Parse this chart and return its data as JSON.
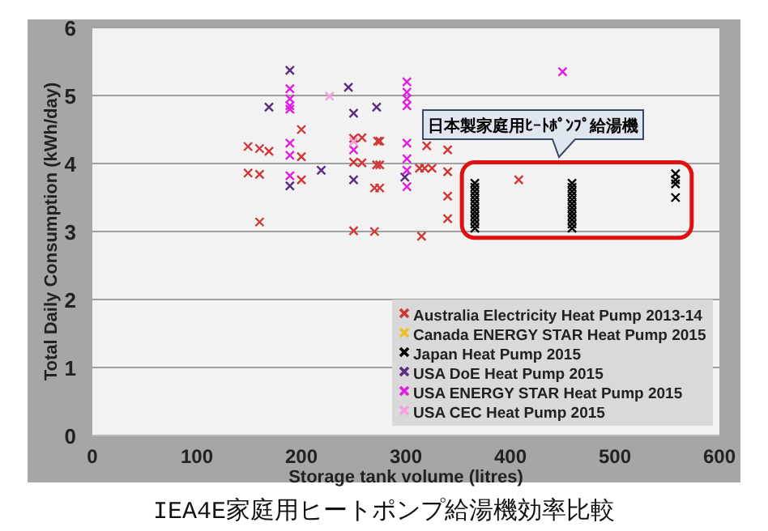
{
  "chart_data": {
    "type": "scatter",
    "title": "IEA4E家庭用ヒートポンプ給湯機効率比較",
    "xlabel": "Storage tank volume (litres)",
    "ylabel": "Total Daily Consumption (kWh/day)",
    "xlim": [
      0,
      600
    ],
    "xticks": [
      0,
      100,
      200,
      300,
      400,
      500,
      600
    ],
    "ylim": [
      0,
      6
    ],
    "yticks": [
      0,
      1,
      2,
      3,
      4,
      5,
      6
    ],
    "grid": "y",
    "legend": "bottom right",
    "marker": "cross",
    "annotations": [
      "日本製家庭用ﾋｰﾄﾎﾟﾝﾌﾟ給湯機"
    ],
    "series": [
      {
        "name": "Australia Electricity Heat Pump 2013-14",
        "color": "#d03838",
        "x": [
          149,
          160,
          169,
          200,
          200,
          149,
          160,
          200,
          160,
          250,
          258,
          250,
          258,
          272,
          275,
          270,
          275,
          250,
          270,
          275,
          273,
          320,
          340,
          313,
          318,
          325,
          340,
          340,
          340,
          315,
          408
        ],
        "values": [
          4.25,
          4.22,
          4.18,
          4.5,
          4.1,
          3.86,
          3.84,
          3.76,
          3.14,
          4.37,
          4.38,
          4.02,
          4.01,
          3.98,
          3.98,
          3.64,
          3.64,
          3.01,
          3.0,
          4.33,
          4.33,
          4.26,
          4.2,
          3.93,
          3.93,
          3.93,
          3.88,
          3.52,
          3.19,
          2.93,
          3.76
        ]
      },
      {
        "name": "Canada ENERGY STAR Heat Pump 2015",
        "color": "#f0c020"
      },
      {
        "name": "Japan Heat Pump 2015",
        "color": "#000000",
        "x": [
          366,
          366,
          366,
          366,
          366,
          366,
          366,
          366,
          366,
          366,
          366,
          366,
          459,
          459,
          459,
          459,
          459,
          459,
          459,
          459,
          459,
          459,
          459,
          459,
          558,
          558,
          558,
          558
        ],
        "values": [
          3.71,
          3.65,
          3.59,
          3.53,
          3.47,
          3.41,
          3.35,
          3.29,
          3.23,
          3.17,
          3.11,
          3.05,
          3.71,
          3.65,
          3.59,
          3.53,
          3.47,
          3.41,
          3.35,
          3.29,
          3.23,
          3.17,
          3.11,
          3.05,
          3.85,
          3.76,
          3.7,
          3.5
        ]
      },
      {
        "name": "USA DoE Heat Pump 2015",
        "color": "#5a2d82",
        "x": [
          189,
          169,
          245,
          250,
          272,
          189,
          219,
          250,
          299
        ],
        "values": [
          5.37,
          4.83,
          5.12,
          4.74,
          4.83,
          3.67,
          3.9,
          3.76,
          3.8
        ]
      },
      {
        "name": "USA ENERGY STAR Heat Pump 2015",
        "color": "#e020e0",
        "x": [
          189,
          189,
          189,
          189,
          189,
          189,
          189,
          250,
          301,
          301,
          301,
          301,
          301,
          301,
          301,
          301,
          450
        ],
        "values": [
          5.1,
          4.95,
          4.85,
          4.3,
          4.12,
          3.82,
          4.8,
          4.2,
          5.2,
          5.05,
          4.95,
          4.85,
          4.3,
          4.07,
          3.9,
          3.66,
          5.35
        ]
      },
      {
        "name": "USA CEC Heat Pump 2015",
        "color": "#f4a0e0",
        "x": [
          227,
          250
        ],
        "values": [
          4.99,
          4.32
        ]
      }
    ]
  }
}
